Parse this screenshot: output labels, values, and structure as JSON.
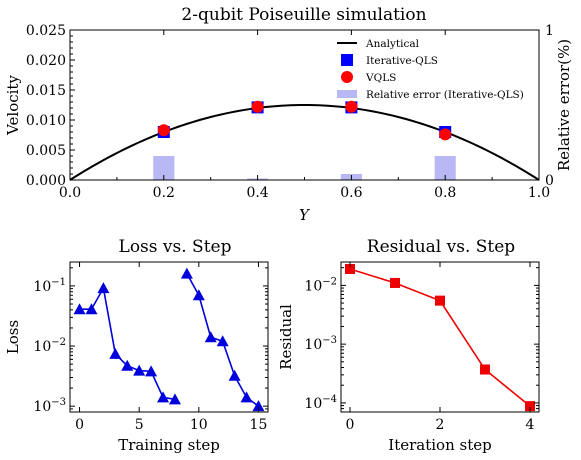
{
  "colors": {
    "analytical": "#000000",
    "iterative": "#0000ff",
    "vqls": "#ff0000",
    "error_bar": "#b8b8f5",
    "loss": "#0000dd",
    "residual": "#ee0000"
  },
  "chart_data": [
    {
      "type": "line",
      "title": "2-qubit Poiseuille simulation",
      "xlabel": "Y",
      "ylabel": "Velocity",
      "ylabel_right": "Relative error(%)",
      "xlim": [
        0.0,
        1.0
      ],
      "ylim": [
        0.0,
        0.025
      ],
      "ylim_right": [
        0,
        1
      ],
      "x_ticks": [
        "0.0",
        "0.2",
        "0.4",
        "0.6",
        "0.8",
        "1.0"
      ],
      "y_ticks": [
        "0.000",
        "0.005",
        "0.010",
        "0.015",
        "0.020",
        "0.025"
      ],
      "y_right_ticks": [
        "0",
        "1"
      ],
      "legend_position": "top-right",
      "series": [
        {
          "name": "Analytical",
          "kind": "line",
          "function": "0.05*Y*(1-Y)"
        },
        {
          "name": "Iterative-QLS",
          "kind": "marker-square",
          "x": [
            0.2,
            0.4,
            0.6,
            0.8
          ],
          "y": [
            0.008,
            0.0121,
            0.0121,
            0.008
          ]
        },
        {
          "name": "VQLS",
          "kind": "marker-circle",
          "x": [
            0.2,
            0.4,
            0.6,
            0.8
          ],
          "y": [
            0.0083,
            0.0122,
            0.0122,
            0.0076
          ]
        },
        {
          "name": "Relative error (Iterative-QLS)",
          "kind": "bar-right-axis",
          "x": [
            0.2,
            0.4,
            0.6,
            0.8
          ],
          "y": [
            0.16,
            0.01,
            0.04,
            0.16
          ]
        }
      ]
    },
    {
      "type": "line",
      "title": "Loss vs. Step",
      "xlabel": "Training step",
      "ylabel": "Loss",
      "yscale": "log",
      "xlim": [
        -0.8,
        15.8
      ],
      "ylim": [
        0.0008,
        0.25
      ],
      "x_ticks": [
        "0",
        "5",
        "10",
        "15"
      ],
      "y_ticks": [
        "10^-1",
        "10^-2",
        "10^-3"
      ],
      "series": [
        {
          "segment": 1,
          "x": [
            0,
            1,
            2,
            3,
            4,
            5,
            6,
            7,
            8
          ],
          "y": [
            0.041,
            0.041,
            0.092,
            0.0074,
            0.0047,
            0.0039,
            0.0038,
            0.0014,
            0.0013
          ]
        },
        {
          "segment": 2,
          "x": [
            9,
            10,
            11,
            12,
            13,
            14,
            15
          ],
          "y": [
            0.16,
            0.07,
            0.014,
            0.012,
            0.0032,
            0.0014,
            0.001
          ]
        }
      ]
    },
    {
      "type": "line",
      "title": "Residual vs. Step",
      "xlabel": "Iteration step",
      "ylabel": "Residual",
      "yscale": "log",
      "xlim": [
        -0.2,
        4.2
      ],
      "ylim": [
        7e-05,
        0.025
      ],
      "x_ticks": [
        "0",
        "2",
        "4"
      ],
      "y_ticks": [
        "10^-2",
        "10^-3",
        "10^-4"
      ],
      "series": [
        {
          "x": [
            0,
            1,
            2,
            3,
            4
          ],
          "y": [
            0.019,
            0.011,
            0.0055,
            0.00037,
            8.8e-05
          ]
        }
      ]
    }
  ]
}
